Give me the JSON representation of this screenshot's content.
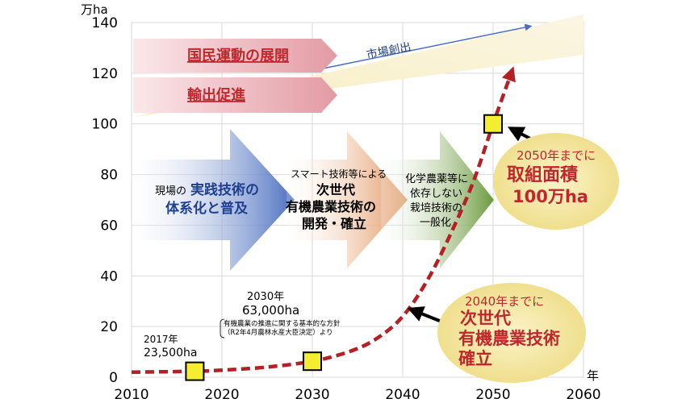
{
  "chart_data": {
    "type": "line",
    "y_unit": "万ha",
    "x_unit": "年",
    "xlim": [
      2010,
      2060
    ],
    "ylim": [
      0,
      140
    ],
    "x_ticks": [
      2010,
      2020,
      2030,
      2040,
      2050,
      2060
    ],
    "y_ticks": [
      0,
      20,
      40,
      60,
      80,
      100,
      120,
      140
    ],
    "grid": true,
    "series": [
      {
        "color": "#b32025",
        "style": "dashed",
        "arrow": true,
        "x": [
          2010,
          2017,
          2020,
          2025,
          2030,
          2034,
          2037,
          2040,
          2043,
          2046,
          2048,
          2050,
          2052
        ],
        "y": [
          2,
          2.35,
          2.8,
          4,
          6.3,
          10,
          15,
          24,
          40,
          62,
          79,
          100,
          120
        ]
      }
    ],
    "markers": [
      {
        "x": 2017,
        "y": 2.35,
        "color": "#f5ee30"
      },
      {
        "x": 2030,
        "y": 6.3,
        "color": "#f5ee30"
      },
      {
        "x": 2050,
        "y": 100,
        "color": "#f5ee30"
      }
    ],
    "annotations": {
      "a2017_year": "2017年",
      "a2017_value": "23,500ha",
      "a2030_year": "2030年",
      "a2030_value": "63,000ha",
      "a2030_note_line1": "有機農業の推進に関する基本的な方針",
      "a2030_note_line2": "（R2年4月農林水産大臣決定）より",
      "c2050_line1": "2050年までに",
      "c2050_line2": "取組面積",
      "c2050_line3": "100万ha",
      "c2040_line1": "2040年までに",
      "c2040_line2": "次世代",
      "c2040_line3": "有機農業技術",
      "c2040_line4": "確立"
    },
    "banners": {
      "top1": "国民運動の展開",
      "top2": "輸出促進",
      "market": "市場創出",
      "arrow1_line1a": "現場の",
      "arrow1_line1b": "実践技術の",
      "arrow1_line2": "体系化と普及",
      "arrow2_line1": "スマート技術等による",
      "arrow2_line2": "次世代",
      "arrow2_line3": "有機農業技術の",
      "arrow2_line4": "開発・確立",
      "arrow3_line1": "化学農薬等に",
      "arrow3_line2": "依存しない",
      "arrow3_line3": "栽培技術の",
      "arrow3_line4": "一般化"
    },
    "colors": {
      "curve": "#b32025",
      "marker": "#f5ee30",
      "callout": "#f4e9a8",
      "callout_text": "#c0272d",
      "banner_text": "#c0272d",
      "arrow_blue": "#4a6fbf",
      "arrow_orange": "#e1925a",
      "arrow_green": "#6b9a3c"
    }
  }
}
